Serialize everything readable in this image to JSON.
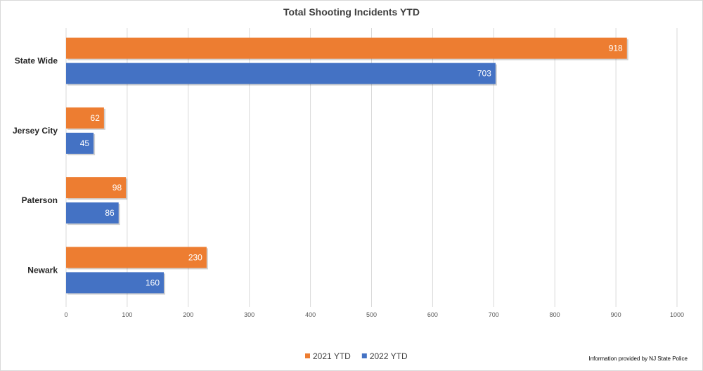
{
  "chart_data": {
    "type": "bar",
    "orientation": "horizontal",
    "title": "Total Shooting Incidents YTD",
    "categories": [
      "State Wide",
      "Jersey City",
      "Paterson",
      "Newark"
    ],
    "series": [
      {
        "name": "2021 YTD",
        "color": "#ED7D31",
        "values": [
          918,
          62,
          98,
          230
        ]
      },
      {
        "name": "2022 YTD",
        "color": "#4472C4",
        "values": [
          703,
          45,
          86,
          160
        ]
      }
    ],
    "xlim": [
      0,
      1000
    ],
    "xticks": [
      0,
      100,
      200,
      300,
      400,
      500,
      600,
      700,
      800,
      900,
      1000
    ],
    "grid": true,
    "legend_position": "bottom",
    "data_labels": true,
    "source_note": "Information provided by NJ State Police"
  }
}
